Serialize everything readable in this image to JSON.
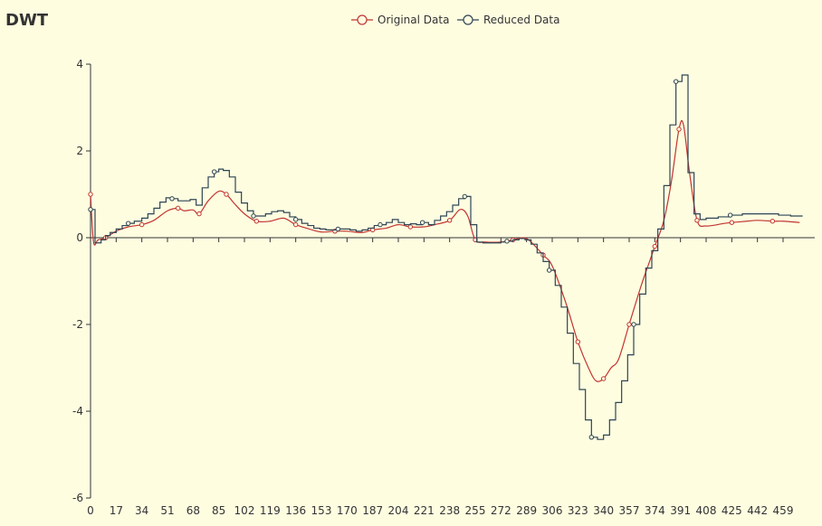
{
  "chart_data": {
    "type": "line",
    "title": "DWT",
    "xlabel": "",
    "ylabel": "",
    "xlim": [
      0,
      480
    ],
    "ylim": [
      -6,
      4
    ],
    "x_ticks": [
      0,
      17,
      34,
      51,
      68,
      85,
      102,
      119,
      136,
      153,
      170,
      187,
      204,
      221,
      238,
      255,
      272,
      289,
      306,
      323,
      340,
      357,
      374,
      391,
      408,
      425,
      442,
      459
    ],
    "y_ticks": [
      -6,
      -4,
      -2,
      0,
      2,
      4
    ],
    "legend": {
      "placement": "top-center"
    },
    "series": [
      {
        "name": "Original Data",
        "color": "#c23531",
        "style": "smooth",
        "x": [
          0,
          2,
          5,
          10,
          17,
          25,
          34,
          42,
          51,
          58,
          62,
          68,
          72,
          78,
          85,
          90,
          95,
          102,
          110,
          119,
          128,
          136,
          145,
          153,
          162,
          170,
          180,
          187,
          196,
          204,
          212,
          221,
          228,
          238,
          245,
          250,
          255,
          262,
          272,
          280,
          287,
          292,
          300,
          306,
          315,
          323,
          330,
          335,
          340,
          345,
          350,
          357,
          365,
          370,
          374,
          380,
          385,
          390,
          393,
          397,
          402,
          408,
          420,
          425,
          435,
          442,
          452,
          459,
          470
        ],
        "y": [
          1.0,
          -0.1,
          -0.05,
          0.0,
          0.15,
          0.25,
          0.3,
          0.4,
          0.62,
          0.68,
          0.62,
          0.64,
          0.55,
          0.85,
          1.07,
          1.0,
          0.8,
          0.55,
          0.38,
          0.38,
          0.45,
          0.3,
          0.2,
          0.13,
          0.15,
          0.15,
          0.12,
          0.18,
          0.22,
          0.3,
          0.25,
          0.25,
          0.3,
          0.4,
          0.65,
          0.5,
          -0.05,
          -0.1,
          -0.1,
          -0.05,
          0.0,
          -0.1,
          -0.4,
          -0.65,
          -1.5,
          -2.4,
          -3.0,
          -3.3,
          -3.25,
          -3.0,
          -2.8,
          -2.0,
          -1.1,
          -0.6,
          -0.2,
          0.4,
          1.3,
          2.5,
          2.6,
          1.5,
          0.4,
          0.27,
          0.33,
          0.35,
          0.38,
          0.4,
          0.38,
          0.38,
          0.35
        ]
      },
      {
        "name": "Reduced Data",
        "color": "#2f4554",
        "style": "step",
        "x": [
          0,
          3,
          7,
          10,
          13,
          17,
          21,
          25,
          29,
          34,
          38,
          42,
          46,
          50,
          54,
          58,
          62,
          66,
          70,
          74,
          78,
          82,
          85,
          88,
          92,
          96,
          100,
          104,
          108,
          112,
          116,
          120,
          124,
          128,
          132,
          136,
          140,
          144,
          148,
          152,
          156,
          160,
          164,
          168,
          172,
          176,
          180,
          184,
          188,
          192,
          196,
          200,
          204,
          208,
          212,
          216,
          220,
          224,
          228,
          232,
          236,
          240,
          244,
          248,
          252,
          256,
          260,
          264,
          268,
          272,
          276,
          280,
          284,
          288,
          292,
          296,
          300,
          304,
          308,
          312,
          316,
          320,
          324,
          328,
          332,
          336,
          340,
          344,
          348,
          352,
          356,
          360,
          364,
          368,
          372,
          376,
          380,
          384,
          388,
          392,
          396,
          400,
          404,
          408,
          416,
          424,
          432,
          440,
          448,
          456,
          464,
          472
        ],
        "y": [
          0.65,
          -0.12,
          -0.05,
          0.05,
          0.12,
          0.2,
          0.28,
          0.33,
          0.38,
          0.45,
          0.55,
          0.68,
          0.82,
          0.92,
          0.9,
          0.85,
          0.85,
          0.88,
          0.75,
          1.15,
          1.4,
          1.52,
          1.58,
          1.55,
          1.4,
          1.05,
          0.8,
          0.62,
          0.5,
          0.5,
          0.55,
          0.6,
          0.62,
          0.58,
          0.48,
          0.42,
          0.33,
          0.28,
          0.22,
          0.2,
          0.18,
          0.18,
          0.2,
          0.2,
          0.18,
          0.15,
          0.18,
          0.22,
          0.28,
          0.3,
          0.35,
          0.42,
          0.35,
          0.3,
          0.32,
          0.3,
          0.35,
          0.3,
          0.4,
          0.5,
          0.6,
          0.75,
          0.9,
          0.95,
          0.3,
          -0.1,
          -0.12,
          -0.12,
          -0.12,
          -0.1,
          -0.08,
          -0.05,
          -0.02,
          -0.05,
          -0.15,
          -0.35,
          -0.55,
          -0.75,
          -1.1,
          -1.6,
          -2.2,
          -2.9,
          -3.5,
          -4.2,
          -4.6,
          -4.65,
          -4.55,
          -4.2,
          -3.8,
          -3.3,
          -2.7,
          -2.0,
          -1.3,
          -0.7,
          -0.3,
          0.2,
          1.2,
          2.6,
          3.6,
          3.75,
          1.5,
          0.55,
          0.42,
          0.45,
          0.48,
          0.52,
          0.55,
          0.55,
          0.55,
          0.52,
          0.5,
          0.5
        ]
      }
    ]
  }
}
